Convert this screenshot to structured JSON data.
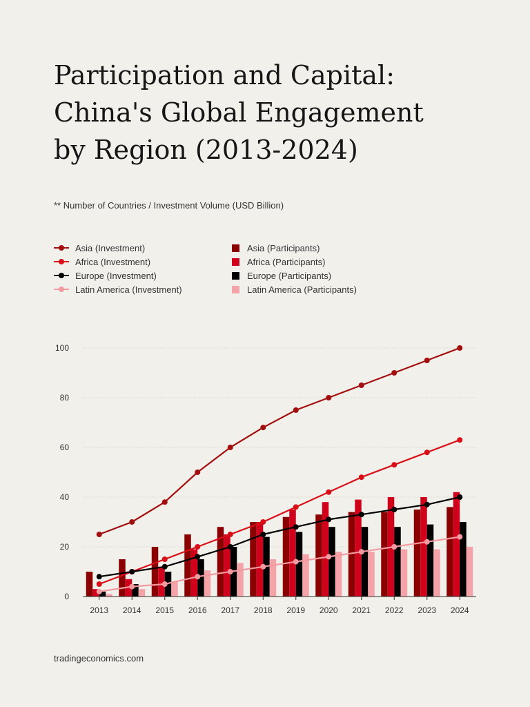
{
  "header": {
    "title_lines": [
      "Participation and Capital:",
      "China's Global Engagement",
      "by Region (2013-2024)"
    ],
    "subtitle": "**   Number of Countries / Investment Volume (USD Billion)"
  },
  "footer": {
    "source": "tradingeconomics.com"
  },
  "chart_data": {
    "type": "bar",
    "title": "Participation and Capital: China's Global Engagement by Region (2013-2024)",
    "subtitle": "**   Number of Countries / Investment Volume (USD Billion)",
    "categories": [
      "2013",
      "2014",
      "2015",
      "2016",
      "2017",
      "2018",
      "2019",
      "2020",
      "2021",
      "2022",
      "2023",
      "2024"
    ],
    "ylim": [
      0,
      100
    ],
    "yticks": [
      0,
      20,
      40,
      60,
      80,
      100
    ],
    "grid": true,
    "legend_position": "top-left",
    "bar_series": [
      {
        "name": "Asia (Participants)",
        "color": "#8b0000",
        "values": [
          10,
          15,
          20,
          25,
          28,
          30,
          32,
          33,
          34,
          34,
          35,
          36
        ]
      },
      {
        "name": "Africa (Participants)",
        "color": "#d0021b",
        "values": [
          3,
          7,
          12,
          19,
          25,
          30,
          35,
          38,
          39,
          40,
          40,
          42
        ]
      },
      {
        "name": "Europe (Participants)",
        "color": "#000000",
        "values": [
          2,
          5,
          10,
          15,
          20,
          24,
          26,
          28,
          28,
          28,
          29,
          30
        ]
      },
      {
        "name": "Latin America (Participants)",
        "color": "#f4a3a8",
        "values": [
          1,
          3,
          6,
          10.5,
          13.5,
          15,
          17,
          18,
          18,
          19,
          19,
          20
        ]
      }
    ],
    "line_series": [
      {
        "name": "Asia (Investment)",
        "color": "#a30e0e",
        "values": [
          25,
          30,
          38,
          50,
          60,
          68,
          75,
          80,
          85,
          90,
          95,
          100
        ]
      },
      {
        "name": "Africa (Investment)",
        "color": "#d80f16",
        "values": [
          5,
          10,
          15,
          20,
          25,
          30,
          36,
          42,
          48,
          53,
          58,
          63
        ]
      },
      {
        "name": "Europe (Investment)",
        "color": "#000000",
        "values": [
          8,
          10,
          12,
          16,
          20,
          25,
          28,
          31,
          33,
          35,
          37,
          40
        ]
      },
      {
        "name": "Latin America (Investment)",
        "color": "#f29aa0",
        "values": [
          2,
          4,
          5,
          8,
          10,
          12,
          14,
          16,
          18,
          20,
          22,
          24
        ]
      }
    ]
  }
}
